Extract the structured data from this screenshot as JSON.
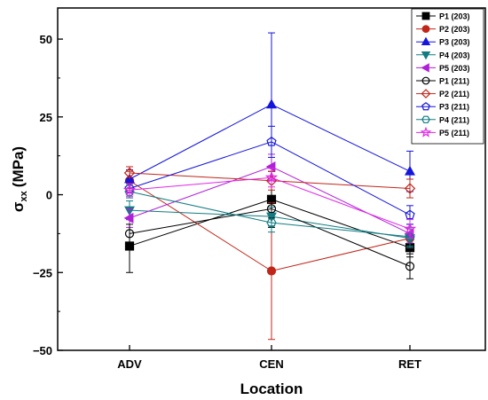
{
  "chart_data": {
    "type": "line",
    "categories": [
      "ADV",
      "CEN",
      "RET"
    ],
    "xlabel": "Location",
    "ylabel_main": "σ",
    "ylabel_sub": "xx",
    "ylabel_unit": "(MPa)",
    "ylim": [
      -50,
      60
    ],
    "yticks": [
      -50,
      -25,
      0,
      25,
      50
    ],
    "ytick_labels": [
      "−50",
      "−25",
      "0",
      "25",
      "50"
    ],
    "grid": false,
    "legend_position": "top-right",
    "series": [
      {
        "name": "P1 (203)",
        "values": [
          -16.5,
          -1.5,
          -17
        ],
        "errors": [
          8.5,
          9,
          3
        ],
        "color": "#000000",
        "marker": "square",
        "filled": true
      },
      {
        "name": "P2 (203)",
        "values": [
          4.5,
          -24.5,
          -14
        ],
        "errors": [
          3,
          22,
          3
        ],
        "color": "#c0261a",
        "marker": "circle",
        "filled": true
      },
      {
        "name": "P3 (203)",
        "values": [
          5,
          29,
          7.5
        ],
        "errors": [
          3,
          23,
          6.5
        ],
        "color": "#1515dc",
        "marker": "triangle-up",
        "filled": true
      },
      {
        "name": "P4 (203)",
        "values": [
          -5,
          -7,
          -14
        ],
        "errors": [
          3,
          3,
          3
        ],
        "color": "#127c82",
        "marker": "triangle-down",
        "filled": true
      },
      {
        "name": "P5 (203)",
        "values": [
          -7.5,
          9,
          -12.5
        ],
        "errors": [
          3,
          4,
          3
        ],
        "color": "#b020d8",
        "marker": "triangle-left",
        "filled": true
      },
      {
        "name": "P1 (211)",
        "values": [
          -12.5,
          -4.5,
          -23
        ],
        "errors": [
          3,
          3,
          4
        ],
        "color": "#000000",
        "marker": "circle",
        "filled": false
      },
      {
        "name": "P2 (211)",
        "values": [
          7,
          4.5,
          2
        ],
        "errors": [
          2,
          3,
          3
        ],
        "color": "#c0261a",
        "marker": "diamond",
        "filled": false
      },
      {
        "name": "P3 (211)",
        "values": [
          2,
          17,
          -6.5
        ],
        "errors": [
          3,
          5,
          3
        ],
        "color": "#1515dc",
        "marker": "pentagon",
        "filled": false
      },
      {
        "name": "P4 (211)",
        "values": [
          1,
          -9,
          -13.5
        ],
        "errors": [
          2,
          3,
          3
        ],
        "color": "#127c82",
        "marker": "hexagon",
        "filled": false
      },
      {
        "name": "P5 (211)",
        "values": [
          1.5,
          5.5,
          -11
        ],
        "errors": [
          2,
          3,
          3
        ],
        "color": "#e027e8",
        "marker": "star",
        "filled": false
      }
    ]
  }
}
